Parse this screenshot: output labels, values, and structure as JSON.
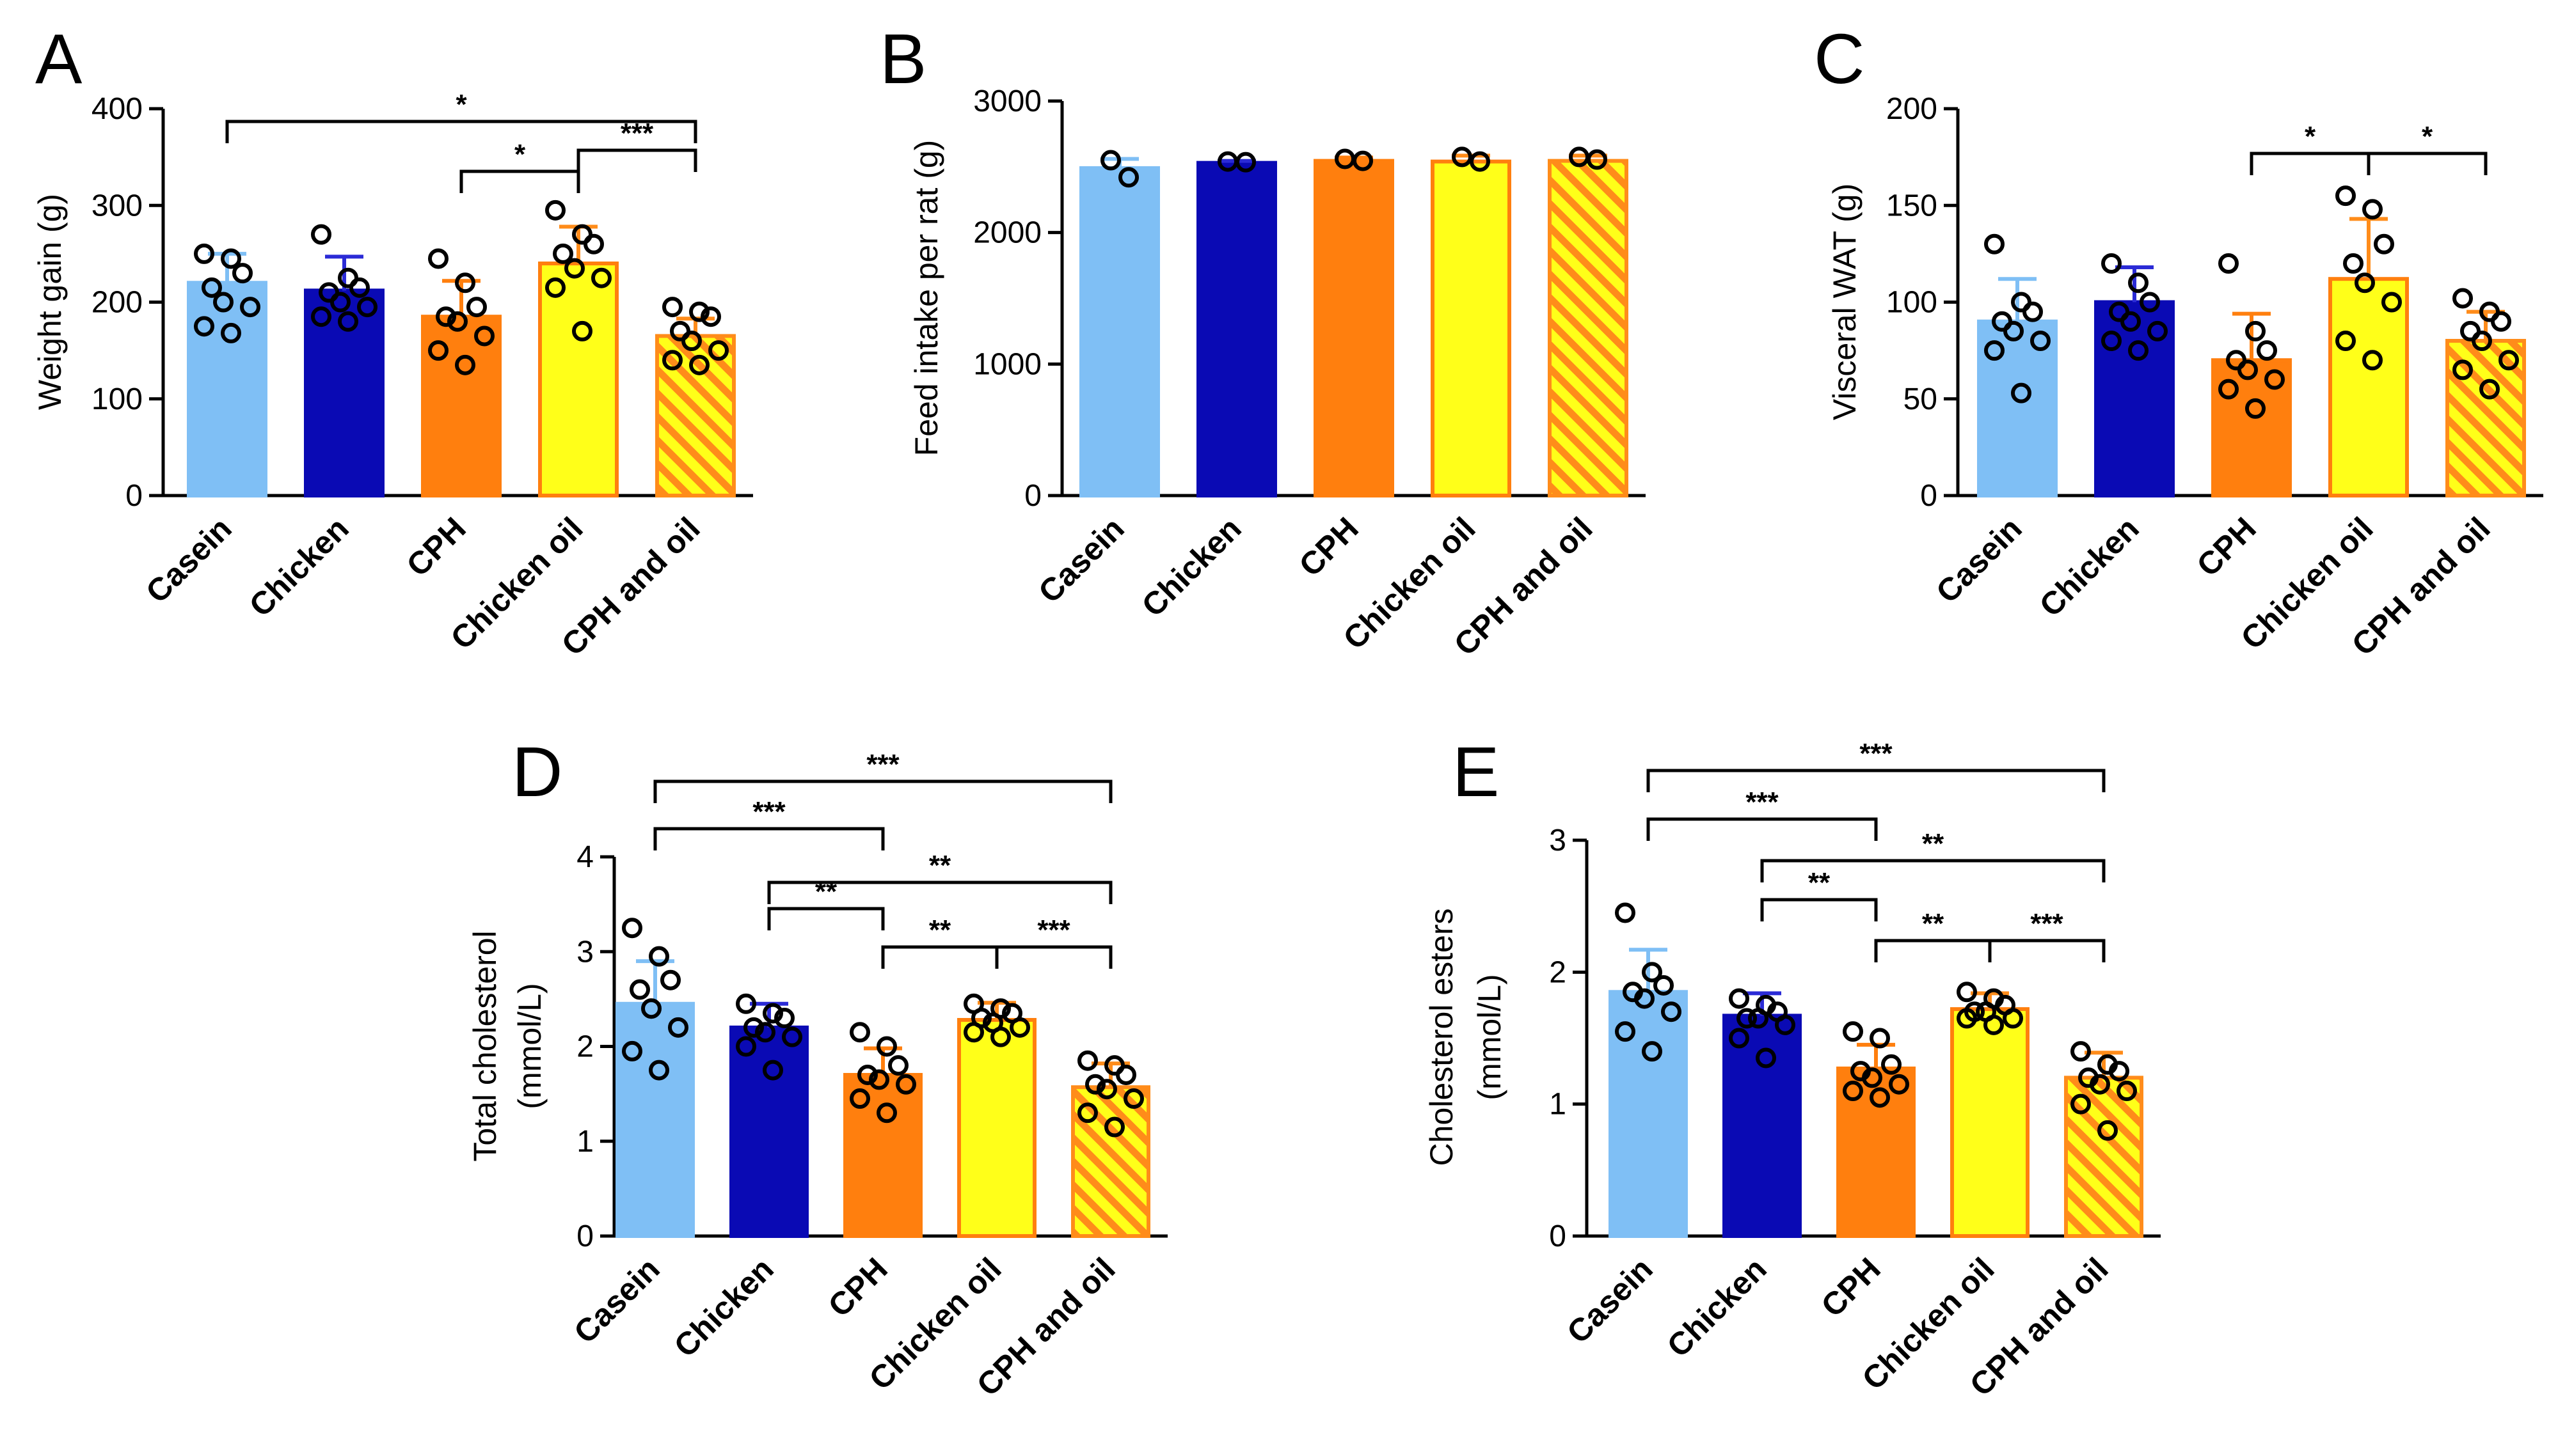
{
  "colors": {
    "casein": "#7fbff5",
    "chicken": "#0a0ab4",
    "cph": "#ff7f0e",
    "chicken_oil": "#ffff19",
    "cph_and_oil": "#ff8c1a"
  },
  "chart_data": [
    {
      "panel": "A",
      "type": "bar",
      "categories": [
        "Casein",
        "Chicken",
        "CPH",
        "Chicken oil",
        "CPH and oil"
      ],
      "values": [
        220,
        212,
        185,
        240,
        165
      ],
      "errors": [
        30,
        35,
        37,
        38,
        18
      ],
      "points": [
        [
          250,
          245,
          230,
          215,
          200,
          195,
          175,
          168
        ],
        [
          270,
          225,
          215,
          210,
          200,
          195,
          185,
          180
        ],
        [
          245,
          220,
          195,
          185,
          180,
          165,
          150,
          135
        ],
        [
          295,
          270,
          260,
          250,
          235,
          225,
          215,
          170
        ],
        [
          195,
          190,
          185,
          170,
          160,
          150,
          140,
          135
        ]
      ],
      "ylabel": "Weight gain (g)",
      "ylim": [
        0,
        400
      ],
      "yticks": [
        0,
        100,
        200,
        300,
        400
      ],
      "significance": [
        {
          "from": 0,
          "to": 4,
          "label": "*"
        },
        {
          "from": 2,
          "to": 3,
          "label": "*"
        },
        {
          "from": 3,
          "to": 4,
          "label": "***"
        }
      ]
    },
    {
      "panel": "B",
      "type": "bar",
      "categories": [
        "Casein",
        "Chicken",
        "CPH",
        "Chicken oil",
        "CPH and oil"
      ],
      "values": [
        2490,
        2530,
        2545,
        2540,
        2545
      ],
      "errors": [
        70,
        15,
        25,
        45,
        40
      ],
      "points": [
        [
          2550,
          2420
        ],
        [
          2540,
          2535
        ],
        [
          2560,
          2545
        ],
        [
          2575,
          2540
        ],
        [
          2575,
          2555
        ]
      ],
      "ylabel": "Feed intake per rat (g)",
      "ylim": [
        0,
        3000
      ],
      "yticks": [
        0,
        1000,
        2000,
        3000
      ],
      "significance": []
    },
    {
      "panel": "C",
      "type": "bar",
      "categories": [
        "Casein",
        "Chicken",
        "CPH",
        "Chicken oil",
        "CPH and oil"
      ],
      "values": [
        90,
        100,
        70,
        112,
        80
      ],
      "errors": [
        22,
        18,
        24,
        31,
        15
      ],
      "points": [
        [
          130,
          100,
          95,
          90,
          85,
          80,
          75,
          53
        ],
        [
          120,
          110,
          100,
          95,
          90,
          85,
          80,
          75
        ],
        [
          120,
          85,
          75,
          70,
          65,
          60,
          55,
          45
        ],
        [
          155,
          148,
          130,
          120,
          110,
          100,
          80,
          70
        ],
        [
          102,
          95,
          90,
          85,
          80,
          70,
          65,
          55
        ]
      ],
      "ylabel": "Visceral WAT (g)",
      "ylim": [
        0,
        200
      ],
      "yticks": [
        0,
        50,
        100,
        150,
        200
      ],
      "significance": [
        {
          "from": 2,
          "to": 3,
          "label": "*"
        },
        {
          "from": 3,
          "to": 4,
          "label": "*"
        }
      ]
    },
    {
      "panel": "D",
      "type": "bar",
      "categories": [
        "Casein",
        "Chicken",
        "CPH",
        "Chicken oil",
        "CPH and oil"
      ],
      "values": [
        2.45,
        2.2,
        1.7,
        2.28,
        1.57
      ],
      "errors": [
        0.45,
        0.25,
        0.28,
        0.18,
        0.25
      ],
      "points": [
        [
          3.25,
          2.95,
          2.7,
          2.6,
          2.4,
          2.2,
          1.95,
          1.75
        ],
        [
          2.45,
          2.35,
          2.3,
          2.2,
          2.15,
          2.1,
          2.0,
          1.75
        ],
        [
          2.15,
          2.0,
          1.8,
          1.7,
          1.65,
          1.6,
          1.45,
          1.3
        ],
        [
          2.45,
          2.4,
          2.35,
          2.3,
          2.25,
          2.2,
          2.15,
          2.1
        ],
        [
          1.85,
          1.8,
          1.7,
          1.6,
          1.55,
          1.45,
          1.3,
          1.15
        ]
      ],
      "ylabel": "Total cholesterol",
      "ylabel2": "(mmol/L)",
      "ylim": [
        0,
        4
      ],
      "yticks": [
        0,
        1,
        2,
        3,
        4
      ],
      "significance": [
        {
          "from": 0,
          "to": 4,
          "label": "***"
        },
        {
          "from": 0,
          "to": 2,
          "label": "***"
        },
        {
          "from": 1,
          "to": 4,
          "label": "**"
        },
        {
          "from": 1,
          "to": 2,
          "label": "**"
        },
        {
          "from": 2,
          "to": 3,
          "label": "**"
        },
        {
          "from": 3,
          "to": 4,
          "label": "***"
        }
      ]
    },
    {
      "panel": "E",
      "type": "bar",
      "categories": [
        "Casein",
        "Chicken",
        "CPH",
        "Chicken oil",
        "CPH and oil"
      ],
      "values": [
        1.85,
        1.67,
        1.27,
        1.72,
        1.2
      ],
      "errors": [
        0.32,
        0.17,
        0.18,
        0.12,
        0.19
      ],
      "points": [
        [
          2.45,
          2.0,
          1.9,
          1.85,
          1.8,
          1.7,
          1.55,
          1.4
        ],
        [
          1.8,
          1.75,
          1.7,
          1.65,
          1.65,
          1.6,
          1.5,
          1.35
        ],
        [
          1.55,
          1.5,
          1.3,
          1.25,
          1.2,
          1.15,
          1.1,
          1.05
        ],
        [
          1.85,
          1.8,
          1.75,
          1.7,
          1.7,
          1.65,
          1.65,
          1.6
        ],
        [
          1.4,
          1.3,
          1.25,
          1.2,
          1.15,
          1.1,
          1.0,
          0.8
        ]
      ],
      "ylabel": "Cholesterol esters",
      "ylabel2": "(mmol/L)",
      "ylim": [
        0,
        3
      ],
      "yticks": [
        0,
        1,
        2,
        3
      ],
      "significance": [
        {
          "from": 0,
          "to": 4,
          "label": "***"
        },
        {
          "from": 0,
          "to": 2,
          "label": "***"
        },
        {
          "from": 1,
          "to": 4,
          "label": "**"
        },
        {
          "from": 1,
          "to": 2,
          "label": "**"
        },
        {
          "from": 2,
          "to": 3,
          "label": "**"
        },
        {
          "from": 3,
          "to": 4,
          "label": "***"
        }
      ]
    }
  ]
}
